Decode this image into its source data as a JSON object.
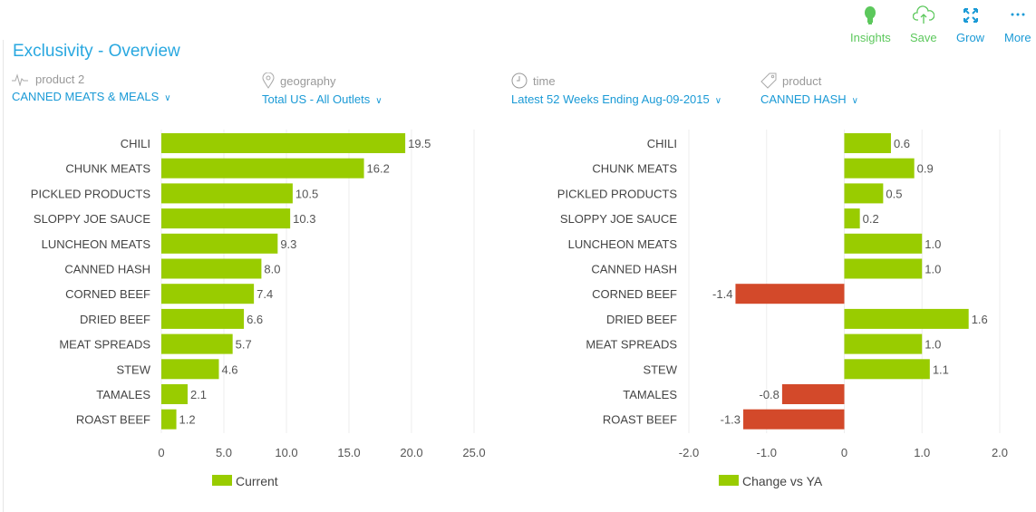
{
  "toolbar": {
    "insights": "Insights",
    "save": "Save",
    "grow": "Grow",
    "more": "More"
  },
  "title": "Exclusivity - Overview",
  "filters": [
    {
      "caption": "product 2",
      "value": "CANNED MEATS & MEALS",
      "icon": "pulse-icon"
    },
    {
      "caption": "geography",
      "value": "Total US - All Outlets",
      "icon": "location-pin-icon"
    },
    {
      "caption": "time",
      "value": "Latest 52 Weeks Ending Aug-09-2015",
      "icon": "clock-icon"
    },
    {
      "caption": "product",
      "value": "CANNED HASH",
      "icon": "tag-icon"
    }
  ],
  "colors": {
    "positive": "#99cc00",
    "negative": "#d3492a",
    "accent": "#29a8e0",
    "toolbar_green": "#5cc85c"
  },
  "chart_data": [
    {
      "type": "bar",
      "orientation": "horizontal",
      "categories": [
        "CHILI",
        "CHUNK MEATS",
        "PICKLED PRODUCTS",
        "SLOPPY JOE SAUCE",
        "LUNCHEON MEATS",
        "CANNED HASH",
        "CORNED BEEF",
        "DRIED BEEF",
        "MEAT SPREADS",
        "STEW",
        "TAMALES",
        "ROAST BEEF"
      ],
      "values": [
        19.5,
        16.2,
        10.5,
        10.3,
        9.3,
        8.0,
        7.4,
        6.6,
        5.7,
        4.6,
        2.1,
        1.2
      ],
      "labels": [
        "19.5",
        "16.2",
        "10.5",
        "10.3",
        "9.3",
        "8.0",
        "7.4",
        "6.6",
        "5.7",
        "4.6",
        "2.1",
        "1.2"
      ],
      "xlim": [
        0,
        25
      ],
      "ticks": [
        "0",
        "5.0",
        "10.0",
        "15.0",
        "20.0",
        "25.0"
      ],
      "tick_values": [
        0,
        5,
        10,
        15,
        20,
        25
      ],
      "legend": "Current",
      "legend_position": "bottom",
      "grid": true
    },
    {
      "type": "bar",
      "orientation": "horizontal",
      "categories": [
        "CHILI",
        "CHUNK MEATS",
        "PICKLED PRODUCTS",
        "SLOPPY JOE SAUCE",
        "LUNCHEON MEATS",
        "CANNED HASH",
        "CORNED BEEF",
        "DRIED BEEF",
        "MEAT SPREADS",
        "STEW",
        "TAMALES",
        "ROAST BEEF"
      ],
      "values": [
        0.6,
        0.9,
        0.5,
        0.2,
        1.0,
        1.0,
        -1.4,
        1.6,
        1.0,
        1.1,
        -0.8,
        -1.3
      ],
      "labels": [
        "0.6",
        "0.9",
        "0.5",
        "0.2",
        "1.0",
        "1.0",
        "-1.4",
        "1.6",
        "1.0",
        "1.1",
        "-0.8",
        "-1.3"
      ],
      "xlim": [
        -2,
        2
      ],
      "ticks": [
        "-2.0",
        "-1.0",
        "0",
        "1.0",
        "2.0"
      ],
      "tick_values": [
        -2,
        -1,
        0,
        1,
        2
      ],
      "legend": "Change vs YA",
      "legend_position": "bottom",
      "grid": true
    }
  ]
}
